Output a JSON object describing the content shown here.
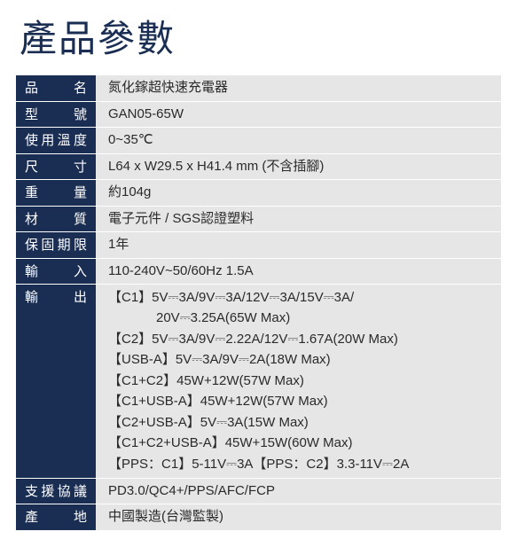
{
  "title": "產品參數",
  "colors": {
    "title": "#1a2d52",
    "labelBg": "#1a2d52",
    "labelText": "#ffffff",
    "valueBg": "#e6e6e6",
    "valueText": "#2a2a2a",
    "pageBg": "#ffffff"
  },
  "rows": {
    "name": {
      "label": "品　　名",
      "value": "氮化鎵超快速充電器"
    },
    "model": {
      "label": "型　　號",
      "value": "GAN05-65W"
    },
    "temperature": {
      "label": "使用溫度",
      "value": "0~35℃"
    },
    "dimensions": {
      "label": "尺　　寸",
      "value": "L64 x W29.5 x H41.4 mm (不含插腳)"
    },
    "weight": {
      "label": "重　　量",
      "value": "約104g"
    },
    "material": {
      "label": "材　　質",
      "value": "電子元件 / SGS認證塑料"
    },
    "warranty": {
      "label": "保固期限",
      "value": "1年"
    },
    "input": {
      "label": "輸　　入",
      "value": "110-240V~50/60Hz 1.5A"
    },
    "output": {
      "label": "輸　　出",
      "lines": [
        "【C1】5V⎓3A/9V⎓3A/12V⎓3A/15V⎓3A/",
        "20V⎓3.25A(65W Max)",
        "【C2】5V⎓3A/9V⎓2.22A/12V⎓1.67A(20W Max)",
        "【USB-A】5V⎓3A/9V⎓2A(18W Max)",
        "【C1+C2】45W+12W(57W Max)",
        "【C1+USB-A】45W+12W(57W Max)",
        "【C2+USB-A】5V⎓3A(15W Max)",
        "【C1+C2+USB-A】45W+15W(60W Max)",
        "【PPS：C1】5-11V⎓3A【PPS：C2】3.3-11V⎓2A"
      ]
    },
    "protocols": {
      "label": "支援協議",
      "value": "PD3.0/QC4+/PPS/AFC/FCP"
    },
    "origin": {
      "label": "產　　地",
      "value": "中國製造(台灣監製)"
    }
  }
}
